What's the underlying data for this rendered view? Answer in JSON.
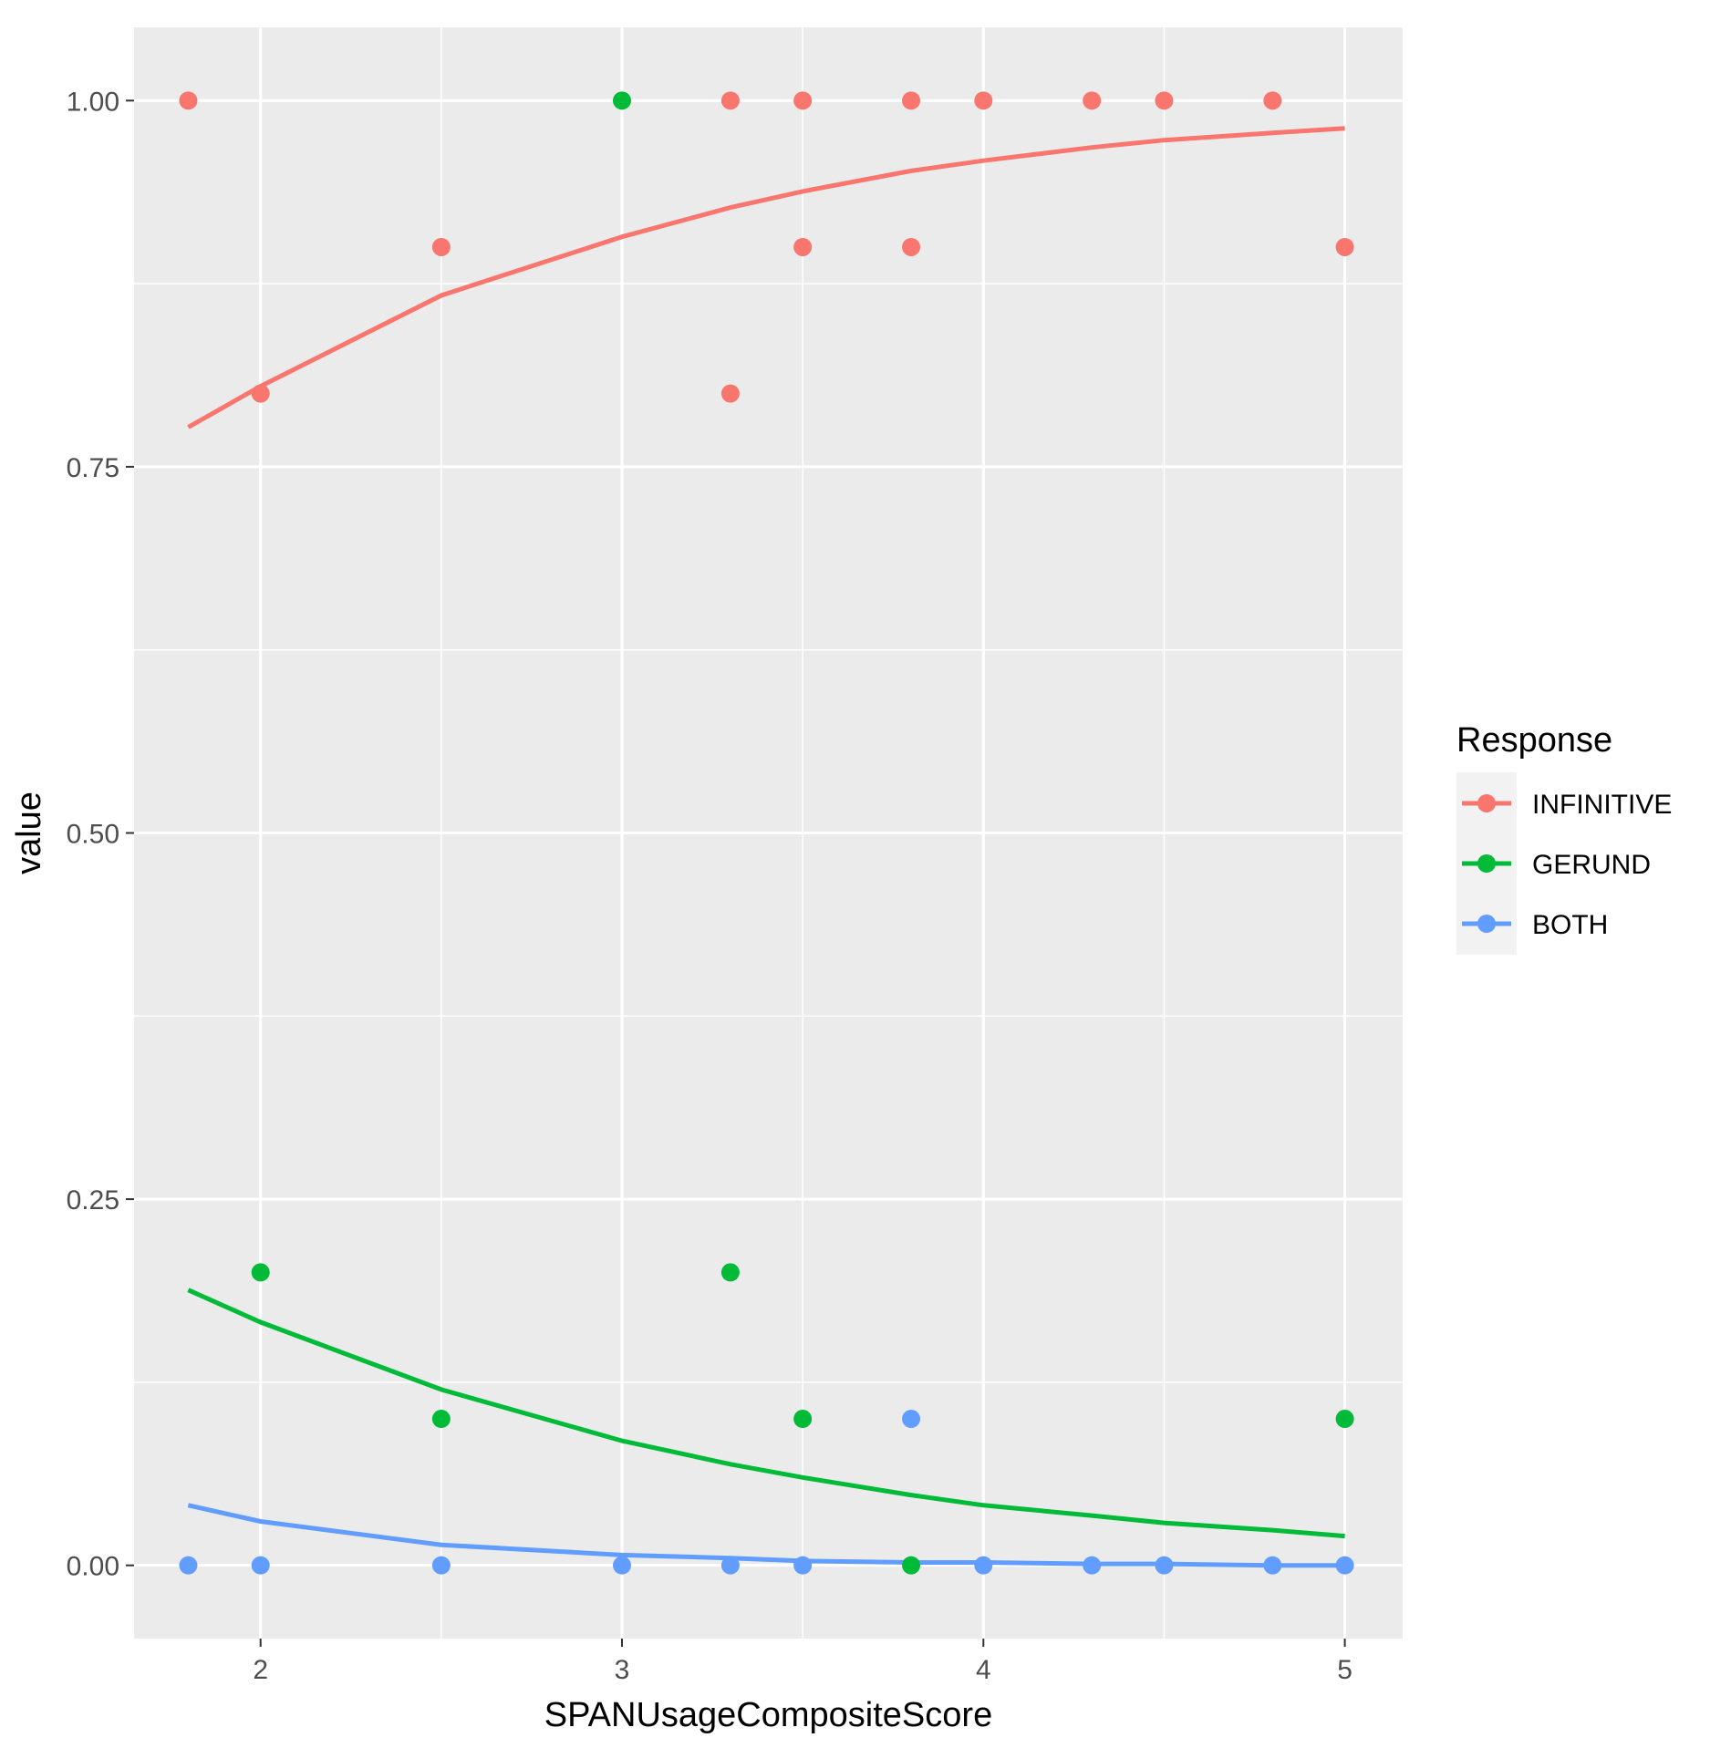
{
  "chart_data": {
    "type": "scatter",
    "xlabel": "SPANUsageCompositeScore",
    "ylabel": "value",
    "xlim": [
      1.65,
      5.16
    ],
    "ylim": [
      -0.05,
      1.05
    ],
    "x_ticks": [
      2,
      3,
      4,
      5
    ],
    "x_tick_labels": [
      "2",
      "3",
      "4",
      "5"
    ],
    "y_ticks": [
      0.0,
      0.25,
      0.5,
      0.75,
      1.0
    ],
    "y_tick_labels": [
      "0.00",
      "0.25",
      "0.50",
      "0.75",
      "1.00"
    ],
    "grid": true,
    "legend": {
      "title": "Response",
      "position": "right"
    },
    "series": [
      {
        "name": "INFINITIVE",
        "color": "#f8766d",
        "points": [
          [
            1.8,
            1.0
          ],
          [
            2.0,
            0.8
          ],
          [
            2.5,
            0.9
          ],
          [
            3.3,
            1.0
          ],
          [
            3.3,
            0.8
          ],
          [
            3.5,
            1.0
          ],
          [
            3.5,
            0.9
          ],
          [
            3.8,
            1.0
          ],
          [
            3.8,
            0.9
          ],
          [
            4.0,
            1.0
          ],
          [
            4.3,
            1.0
          ],
          [
            4.5,
            1.0
          ],
          [
            4.8,
            1.0
          ],
          [
            5.0,
            0.9
          ]
        ],
        "fit": [
          [
            1.8,
            0.777
          ],
          [
            2.0,
            0.805
          ],
          [
            2.5,
            0.867
          ],
          [
            3.0,
            0.907
          ],
          [
            3.3,
            0.927
          ],
          [
            3.5,
            0.938
          ],
          [
            3.8,
            0.952
          ],
          [
            4.0,
            0.959
          ],
          [
            4.3,
            0.968
          ],
          [
            4.5,
            0.973
          ],
          [
            4.8,
            0.978
          ],
          [
            5.0,
            0.981
          ]
        ]
      },
      {
        "name": "GERUND",
        "color": "#00ba38",
        "points": [
          [
            2.0,
            0.2
          ],
          [
            2.5,
            0.1
          ],
          [
            3.0,
            1.0
          ],
          [
            3.3,
            0.2
          ],
          [
            3.5,
            0.1
          ],
          [
            3.8,
            0.0
          ],
          [
            5.0,
            0.1
          ]
        ],
        "fit": [
          [
            1.8,
            0.188
          ],
          [
            2.0,
            0.166
          ],
          [
            2.5,
            0.12
          ],
          [
            3.0,
            0.085
          ],
          [
            3.3,
            0.069
          ],
          [
            3.5,
            0.06
          ],
          [
            3.8,
            0.048
          ],
          [
            4.0,
            0.041
          ],
          [
            4.3,
            0.034
          ],
          [
            4.5,
            0.029
          ],
          [
            4.8,
            0.024
          ],
          [
            5.0,
            0.02
          ]
        ]
      },
      {
        "name": "BOTH",
        "color": "#619cff",
        "points": [
          [
            1.8,
            0.0
          ],
          [
            2.0,
            0.0
          ],
          [
            2.5,
            0.0
          ],
          [
            3.0,
            0.0
          ],
          [
            3.3,
            0.0
          ],
          [
            3.5,
            0.0
          ],
          [
            3.8,
            0.1
          ],
          [
            4.0,
            0.0
          ],
          [
            4.3,
            0.0
          ],
          [
            4.5,
            0.0
          ],
          [
            4.8,
            0.0
          ],
          [
            5.0,
            0.0
          ]
        ],
        "fit": [
          [
            1.8,
            0.041
          ],
          [
            2.0,
            0.03
          ],
          [
            2.5,
            0.014
          ],
          [
            3.0,
            0.007
          ],
          [
            3.3,
            0.005
          ],
          [
            3.5,
            0.003
          ],
          [
            3.8,
            0.002
          ],
          [
            4.0,
            0.002
          ],
          [
            4.3,
            0.001
          ],
          [
            4.5,
            0.001
          ],
          [
            4.8,
            0.0
          ],
          [
            5.0,
            0.0
          ]
        ]
      }
    ]
  }
}
